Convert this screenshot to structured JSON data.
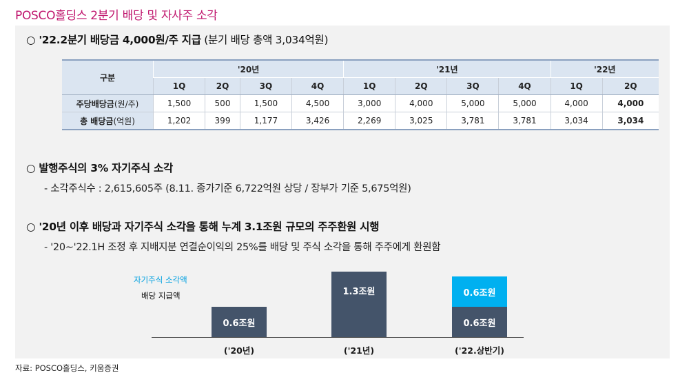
{
  "title": "POSCO홀딩스 2분기 배당 및 자사주 소각",
  "section1": {
    "bullet": "○",
    "heading_bold": "'22.2분기 배당금 4,000원/주 지급",
    "heading_light": " (분기 배당 총액 3,034억원)"
  },
  "table": {
    "row_header_label": "구분",
    "years": [
      "'20년",
      "'21년",
      "'22년"
    ],
    "quarters": [
      "1Q",
      "2Q",
      "3Q",
      "4Q",
      "1Q",
      "2Q",
      "3Q",
      "4Q",
      "1Q",
      "2Q"
    ],
    "rows": [
      {
        "label_bold": "주당배당금",
        "label_unit": "(원/주)",
        "values": [
          "1,500",
          "500",
          "1,500",
          "4,500",
          "3,000",
          "4,000",
          "5,000",
          "5,000",
          "4,000",
          "4,000"
        ]
      },
      {
        "label_bold": "총 배당금",
        "label_unit": "(억원)",
        "values": [
          "1,202",
          "399",
          "1,177",
          "3,426",
          "2,269",
          "3,025",
          "3,781",
          "3,781",
          "3,034",
          "3,034"
        ]
      }
    ]
  },
  "section2": {
    "bullet": "○",
    "heading": "발행주식의 3% 자기주식 소각",
    "sub": "- 소각주식수 : 2,615,605주  (8.11. 종가기준 6,722억원 상당 / 장부가 기준 5,675억원)"
  },
  "section3": {
    "bullet": "○",
    "heading": "'20년 이후 배당과 자기주식 소각을 통해 누계 3.1조원 규모의 주주환원 시행",
    "sub": "- '20~'22.1H 조정 후 지배지분 연결순이익의 25%를 배당 및 주식 소각을 통해 주주에게 환원함"
  },
  "chart_data": {
    "type": "bar",
    "stacked": true,
    "categories": [
      "('20년)",
      "('21년)",
      "('22.상반기)"
    ],
    "series": [
      {
        "name": "배당 지급액",
        "values": [
          0.6,
          1.3,
          0.6
        ],
        "labels": [
          "0.6조원",
          "1.3조원",
          "0.6조원"
        ],
        "color": "#44546a"
      },
      {
        "name": "자기주식 소각액",
        "values": [
          0,
          0,
          0.6
        ],
        "labels": [
          "",
          "",
          "0.6조원"
        ],
        "color": "#00b0f0"
      }
    ],
    "legend_placement": "top-left",
    "unit": "조원"
  },
  "source": "자료: POSCO홀딩스, 키움증권"
}
